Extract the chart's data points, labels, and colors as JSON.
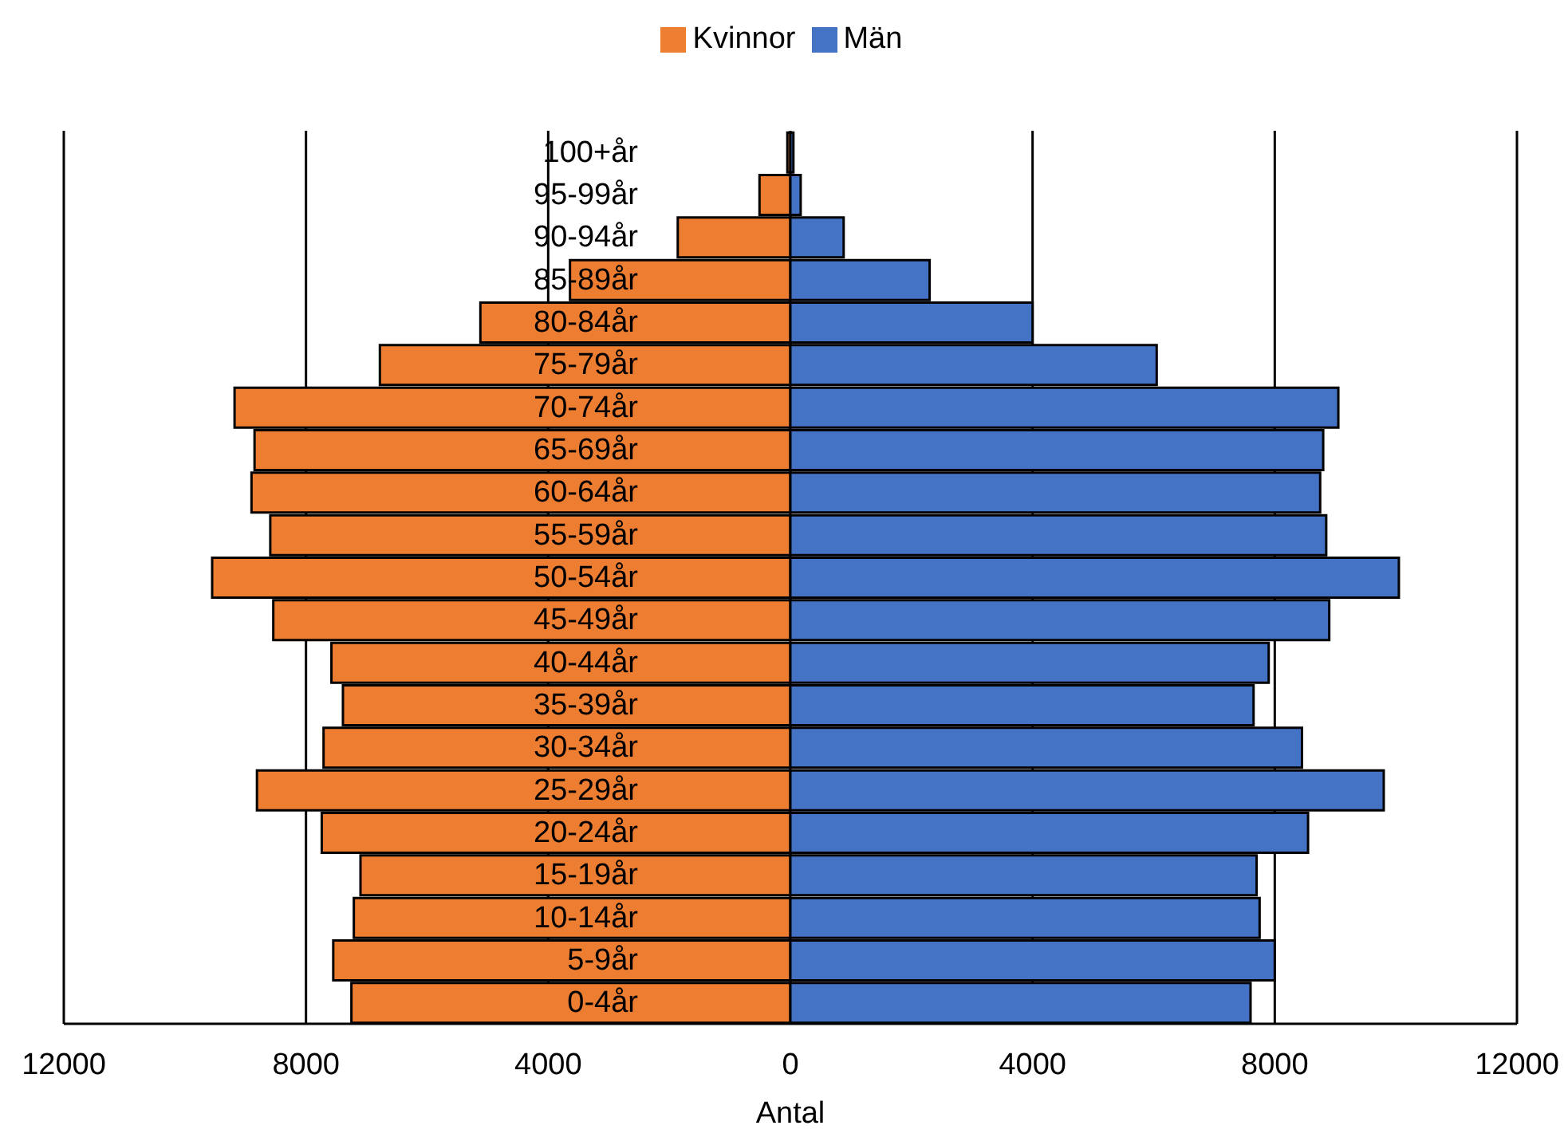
{
  "chart_data": {
    "type": "bar",
    "orientation": "horizontal",
    "stacked": true,
    "xlabel": "Antal",
    "categories": [
      "100+år",
      "95-99år",
      "90-94år",
      "85-89år",
      "80-84år",
      "75-79år",
      "70-74år",
      "65-69år",
      "60-64år",
      "55-59år",
      "50-54år",
      "45-49år",
      "40-44år",
      "35-39år",
      "30-34år",
      "25-29år",
      "20-24år",
      "15-19år",
      "10-14år",
      "5-9år",
      "0-4år"
    ],
    "series": [
      {
        "name": "Kvinnor",
        "color": "#ed7d31",
        "values": [
          -50,
          -510,
          -1860,
          -3640,
          -5120,
          -6780,
          -9180,
          -8850,
          -8900,
          -8590,
          -9550,
          -8540,
          -7580,
          -7390,
          -7710,
          -8810,
          -7740,
          -7100,
          -7210,
          -7550,
          -7250
        ]
      },
      {
        "name": "Män",
        "color": "#4472c4",
        "values": [
          50,
          170,
          880,
          2300,
          4000,
          6050,
          9050,
          8800,
          8750,
          8850,
          10050,
          8900,
          7900,
          7650,
          8450,
          9800,
          8550,
          7700,
          7750,
          8000,
          7600
        ]
      }
    ],
    "xlim": [
      -12000,
      12000
    ],
    "xticks": [
      {
        "value": -12000,
        "label": "12000"
      },
      {
        "value": -8000,
        "label": "8000"
      },
      {
        "value": -4000,
        "label": "4000"
      },
      0,
      4000,
      8000,
      12000
    ],
    "grid": "x",
    "legend": "top"
  }
}
